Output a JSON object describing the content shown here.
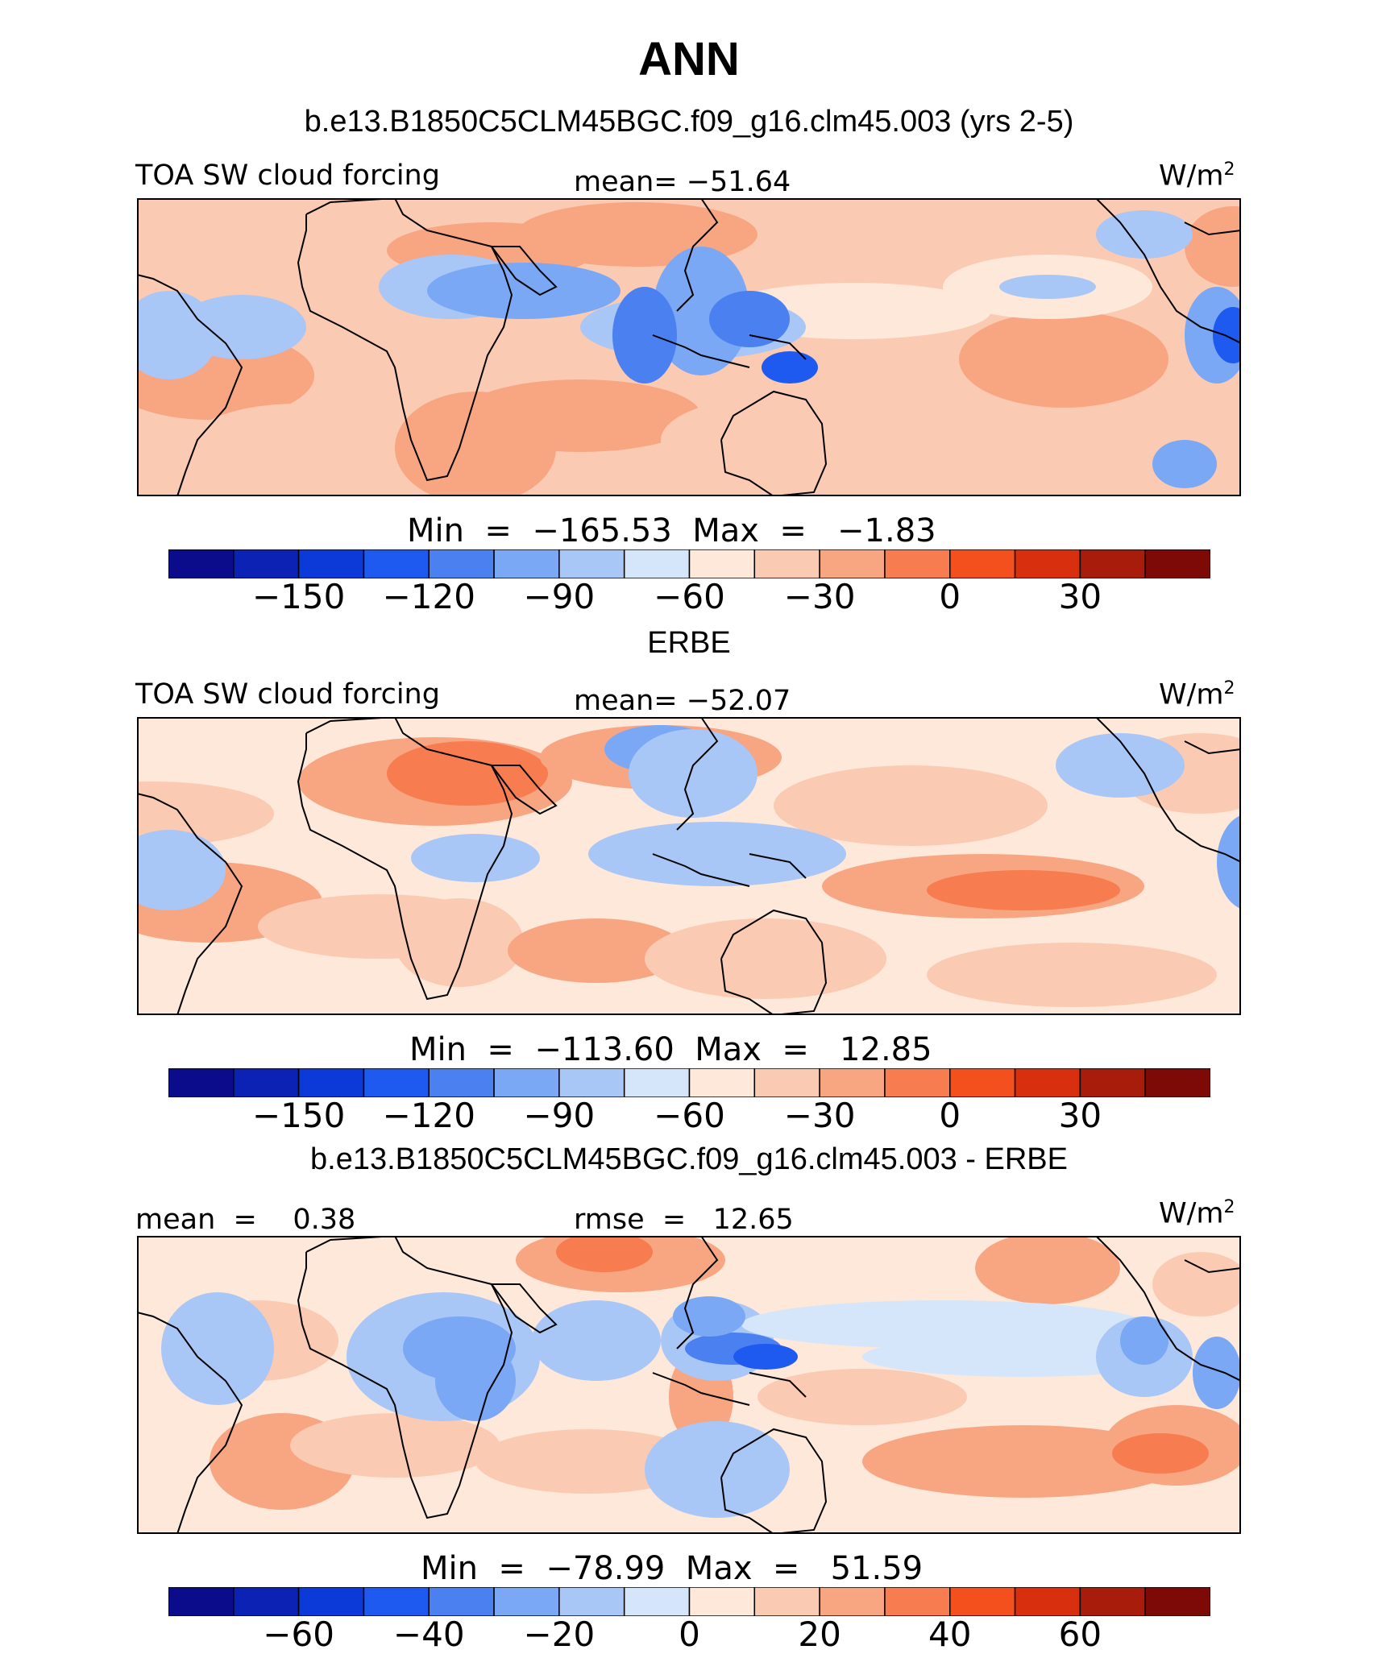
{
  "title": "ANN",
  "palette": [
    "#0a0c8c",
    "#0b22b4",
    "#0c3ad8",
    "#1e5af0",
    "#4a80f0",
    "#7aa8f4",
    "#a8c6f6",
    "#d6e6fa",
    "#fde8da",
    "#fbcab2",
    "#f8a582",
    "#f77c50",
    "#f4501e",
    "#d8300e",
    "#a81c0c",
    "#7e0a08"
  ],
  "panels": [
    {
      "subtitle": "b.e13.B1850C5CLM45BGC.f09_g16.clm45.003 (yrs 2-5)",
      "left_label": "TOA SW cloud forcing",
      "center_label": "mean= −51.64",
      "units": "W/m",
      "units_sup": "2",
      "minmax": "Min  =  −165.53  Max  =   −1.83",
      "ticks": [
        "−150",
        "−120",
        "−90",
        "−60",
        "−30",
        "0",
        "30"
      ],
      "base": "#fbcab2"
    },
    {
      "subtitle": "ERBE",
      "left_label": "TOA SW cloud forcing",
      "center_label": "mean= −52.07",
      "units": "W/m",
      "units_sup": "2",
      "minmax": "Min  =  −113.60  Max  =   12.85",
      "ticks": [
        "−150",
        "−120",
        "−90",
        "−60",
        "−30",
        "0",
        "30"
      ],
      "base": "#fde8da"
    },
    {
      "subtitle": "b.e13.B1850C5CLM45BGC.f09_g16.clm45.003 - ERBE",
      "left_label": "mean  =    0.38",
      "center_label": "rmse  =   12.65",
      "units": "W/m",
      "units_sup": "2",
      "minmax": "Min  =  −78.99  Max  =   51.59",
      "ticks": [
        "−60",
        "−40",
        "−20",
        "0",
        "20",
        "40",
        "60"
      ],
      "base": "#fde8da"
    }
  ]
}
